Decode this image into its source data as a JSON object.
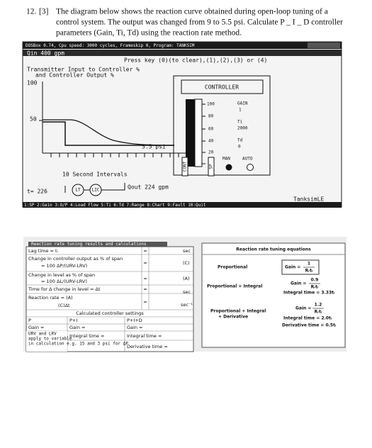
{
  "question": {
    "number": "12.",
    "marks": "[3]",
    "lines": [
      "The diagram below shows the reaction curve obtained during open-loop tuning of a",
      "control system. The output was changed from 9 to 5.5 psi. Calculate P _ I _ D controller",
      "parameters (Gain, Ti, Td) using the reaction rate method."
    ]
  },
  "screen": {
    "titlebar": "DOSBox 0.74, Cpu speed:   3000 cycles, Frameskip  0, Program:   TANKSIM",
    "qin": "Qin  400 gpm",
    "prompt": "Press key (0)(to clear),(1),(2),(3) or (4)",
    "legend": [
      "Transmitter Input to Controller %",
      "and Controller Output %"
    ],
    "y_labels": [
      "100",
      "50"
    ],
    "output_label": "5.5 psi",
    "x_label": "10 Second Intervals",
    "time": "t= 226",
    "lt": "LT",
    "lic": "LIC",
    "qout": "Qout  224 gpm",
    "program": "TanksimLE",
    "menu": "1:SP 2:Gain 3:O/P 4:Load Flow 5:Ti 6:Td 7:Range 8:Chart 9:Fault 10:Quit",
    "controller": {
      "title": "CONTROLLER",
      "scale": [
        "100",
        "80",
        "60",
        "40",
        "20",
        "0"
      ],
      "gain_label": "GAIN",
      "gain": "1",
      "ti_label": "Ti",
      "ti": "2000",
      "td_label": "Td",
      "td": "0",
      "man": "MAN",
      "auto": "AUTO",
      "left_tag": "CONT",
      "right_tag": "SP"
    }
  },
  "results": {
    "title": "Reaction rate tuning results and calculations",
    "rows": [
      {
        "label": [
          "Lag time = tₗ"
        ],
        "eq": "=",
        "unit": "sec"
      },
      {
        "label": [
          "Change in controller output as % of span",
          "= 100 ΔP/(URV-LRV)"
        ],
        "eq": "=",
        "unit": "(C)"
      },
      {
        "label": [
          "Change in level as % of span",
          "= 100 ΔL/(URV-LRV)"
        ],
        "eq": "=",
        "unit": "(A)"
      },
      {
        "label": [
          "Time for Δ change in level = Δt"
        ],
        "eq": "=",
        "unit": "sec"
      },
      {
        "label": [
          "Reaction rate =   (A)",
          "(C)Δt"
        ],
        "eq": "=",
        "unit": "sec⁻¹"
      }
    ],
    "settings_title": "Calculated controller settings",
    "settings": {
      "headers": [
        "P",
        "P+I",
        "P+I+D"
      ],
      "gain": [
        "Gain =",
        "Gain =",
        "Gain ="
      ],
      "integral": [
        "Integral time =",
        "Integral time ="
      ],
      "derivative": "Derivative time =",
      "note": [
        "URV and LRV",
        "apply to variable",
        "in calculation e.g. 15 and 3 psi for ΔP"
      ]
    }
  },
  "equations": {
    "title": "Reaction rate tuning equations",
    "groups": [
      {
        "name": [
          "Proportional"
        ],
        "lines": [
          {
            "label": "Gain =",
            "num": "1",
            "den": "Rᵣtₗ"
          }
        ]
      },
      {
        "name": [
          "Proportional + Integral"
        ],
        "lines": [
          {
            "label": "Gain =",
            "num": "0.9",
            "den": "Rᵣtₗ"
          },
          {
            "label": "Integral time = 3.33tₗ"
          }
        ]
      },
      {
        "name": [
          "Proportional + Integral",
          "+ Derivative"
        ],
        "lines": [
          {
            "label": "Gain =",
            "num": "1.2",
            "den": "Rᵣtₗ"
          },
          {
            "label": "Integral time = 2.0tₗ"
          },
          {
            "label": "Derivative time = 0.5tₗ"
          }
        ]
      }
    ]
  }
}
